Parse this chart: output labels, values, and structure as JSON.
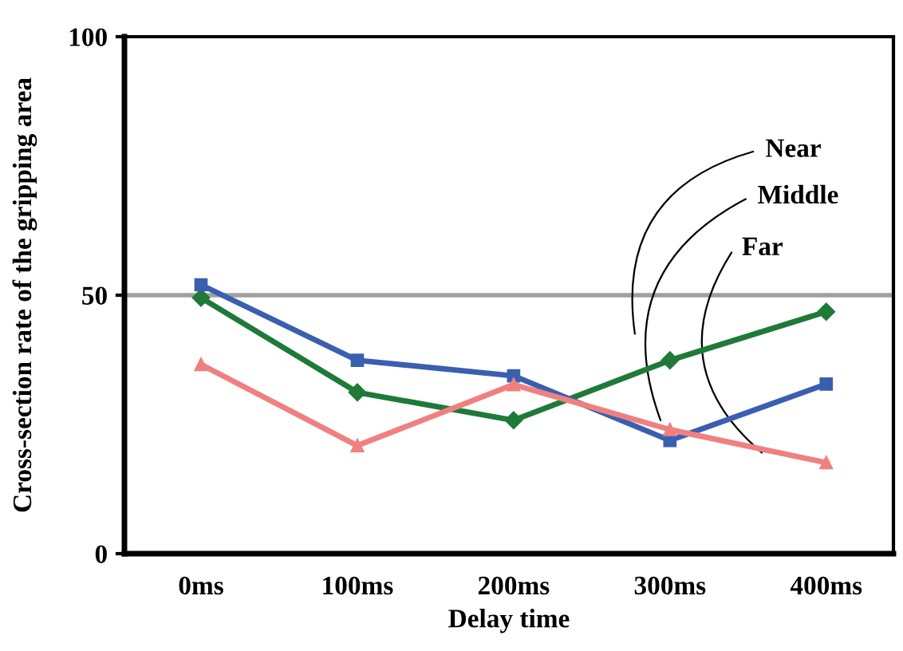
{
  "chart_data": {
    "type": "line",
    "xlabel": "Delay time",
    "ylabel": "Cross-section rate of the gripping area",
    "categories": [
      "0ms",
      "100ms",
      "200ms",
      "300ms",
      "400ms"
    ],
    "series": [
      {
        "name": "Near",
        "color": "#1f7a3a",
        "marker": "diamond",
        "values": [
          49.5,
          31.2,
          25.8,
          37.4,
          46.8
        ]
      },
      {
        "name": "Middle",
        "color": "#3a5fb0",
        "marker": "square",
        "values": [
          52,
          37.4,
          34.4,
          21.9,
          32.8
        ]
      },
      {
        "name": "Far",
        "color": "#f08080",
        "marker": "triangle",
        "values": [
          36.6,
          20.9,
          32.7,
          24,
          17.6
        ]
      }
    ],
    "ylim": [
      0,
      100
    ],
    "yticks": [
      0,
      50,
      100
    ],
    "ref_lines": [
      {
        "axis": "y",
        "value": 50,
        "color": "#a0a0a0"
      }
    ],
    "grid": false,
    "legend": false
  }
}
